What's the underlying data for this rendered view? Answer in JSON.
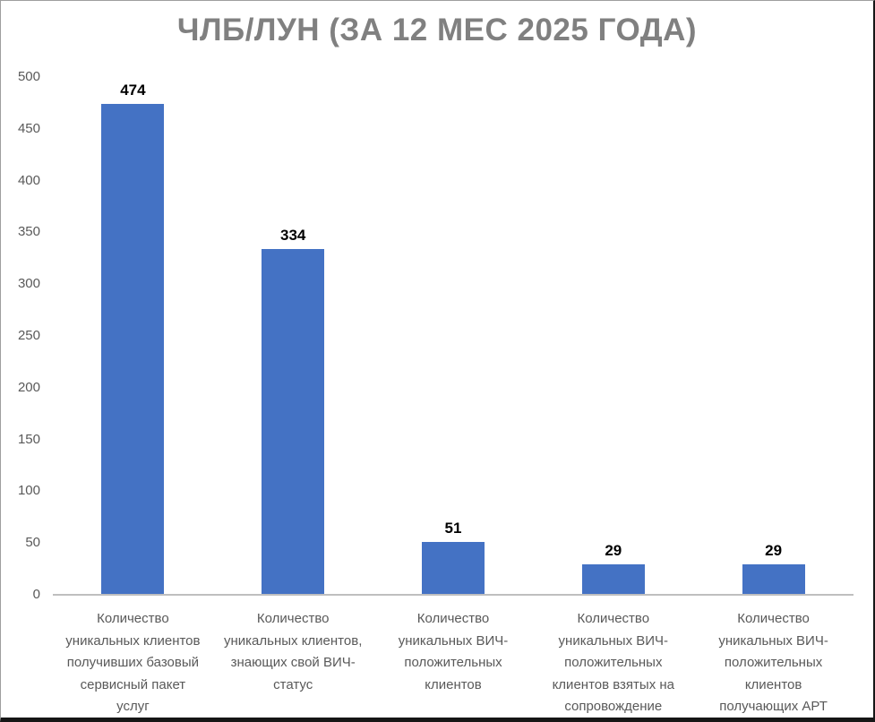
{
  "chart_data": {
    "type": "bar",
    "title": "ЧЛБ/ЛУН (ЗА 12 МЕС 2025 ГОДА)",
    "categories": [
      "Количество\nуникальных клиентов\nполучивших базовый\nсервисный пакет\nуслуг",
      "Количество\nуникальных клиентов,\nзнающих свой ВИЧ-\nстатус",
      "Количество\nуникальных ВИЧ-\nположительных\nклиентов",
      "Количество\nуникальных ВИЧ-\nположительных\nклиентов взятых на\nсопровождение",
      "Количество\nуникальных ВИЧ-\nположительных\nклиентов\nполучающих АРТ"
    ],
    "values": [
      474,
      334,
      51,
      29,
      29
    ],
    "data_labels": [
      "474",
      "334",
      "51",
      "29",
      "29"
    ],
    "xlabel": "",
    "ylabel": "",
    "ylim": [
      0,
      500
    ],
    "yticks": [
      0,
      50,
      100,
      150,
      200,
      250,
      300,
      350,
      400,
      450,
      500
    ],
    "grid": false,
    "legend": "none",
    "colors": {
      "bar": "#4472C4",
      "title": "#808080",
      "axis_text": "#595959",
      "data_label": "#000000",
      "axis_line": "#BFBFBF"
    }
  }
}
